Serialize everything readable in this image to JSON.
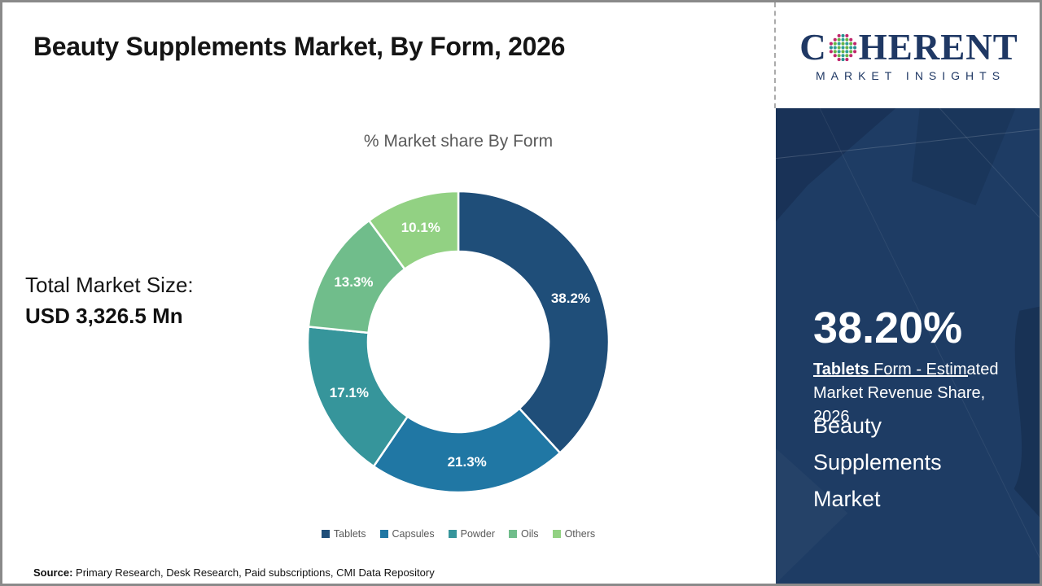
{
  "header": {
    "title": "Beauty Supplements Market, By Form, 2026"
  },
  "logo": {
    "brand_c": "C",
    "brand_rest": "HERENT",
    "subtitle": "MARKET INSIGHTS",
    "navy": "#1f3864",
    "globe_colors": {
      "ring_magenta": "#c0276d",
      "ring_teal": "#2a8f8f",
      "inner_teal": "#2f9d98",
      "inner_green": "#66b345"
    }
  },
  "left_panel": {
    "total_market_label": "Total Market Size:",
    "total_market_value": "USD 3,326.5 Mn"
  },
  "chart_data": {
    "type": "pie",
    "subtype": "donut",
    "title": "% Market share By Form",
    "categories": [
      "Tablets",
      "Capsules",
      "Powder",
      "Oils",
      "Others"
    ],
    "values": [
      38.2,
      21.3,
      17.1,
      13.3,
      10.1
    ],
    "labels": [
      "38.2%",
      "21.3%",
      "17.1%",
      "13.3%",
      "10.1%"
    ],
    "colors": [
      "#1f4e79",
      "#2077a4",
      "#36959b",
      "#70bd8b",
      "#92d183"
    ],
    "start_angle_deg": 0,
    "direction": "clockwise",
    "inner_radius_ratio": 0.6,
    "legend_position": "bottom",
    "label_color": "#ffffff"
  },
  "sidebar": {
    "stat_value": "38.20%",
    "stat_desc_bold": "Tablets",
    "stat_desc_rest": " Form - Estimated Market Revenue Share, 2026",
    "market_name": "Beauty Supplements Market",
    "background": "#1e3c64"
  },
  "footer": {
    "source_label": "Source:",
    "source_text": " Primary Research, Desk Research, Paid subscriptions, CMI Data Repository"
  }
}
